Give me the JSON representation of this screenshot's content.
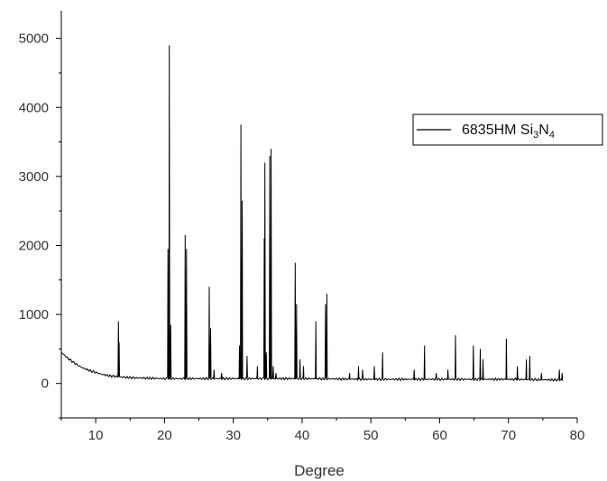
{
  "chart_data": {
    "type": "line",
    "title": "",
    "xlabel": "Degree",
    "ylabel": "",
    "xlim": [
      5,
      80
    ],
    "ylim": [
      -500,
      5400
    ],
    "x_ticks": [
      10,
      20,
      30,
      40,
      50,
      60,
      70,
      80
    ],
    "y_ticks": [
      0,
      1000,
      2000,
      3000,
      4000,
      5000
    ],
    "x_tick_labels": [
      "10",
      "20",
      "30",
      "40",
      "50",
      "60",
      "70",
      "80"
    ],
    "y_tick_labels": [
      "0",
      "1000",
      "2000",
      "3000",
      "4000",
      "5000"
    ],
    "legend_position": "top-right",
    "series": [
      {
        "name": "6835HM Si3N4",
        "legend": {
          "main": "6835HM Si",
          "sub1": "3",
          "mid": "N",
          "sub2": "4"
        },
        "color": "#000000",
        "baseline": {
          "x": [
            5,
            6,
            7,
            8,
            9,
            10,
            11,
            12,
            14,
            16,
            20,
            25,
            30,
            35,
            40,
            50,
            60,
            70,
            78
          ],
          "y": [
            450,
            360,
            290,
            230,
            190,
            160,
            130,
            110,
            90,
            80,
            70,
            70,
            70,
            70,
            70,
            60,
            60,
            60,
            50
          ]
        },
        "peaks": [
          {
            "x": 13.3,
            "y": 900
          },
          {
            "x": 13.4,
            "y": 600
          },
          {
            "x": 20.5,
            "y": 1950
          },
          {
            "x": 20.7,
            "y": 4900
          },
          {
            "x": 20.9,
            "y": 850
          },
          {
            "x": 23.0,
            "y": 2150
          },
          {
            "x": 23.2,
            "y": 1950
          },
          {
            "x": 26.5,
            "y": 1400
          },
          {
            "x": 26.7,
            "y": 800
          },
          {
            "x": 27.2,
            "y": 200
          },
          {
            "x": 28.3,
            "y": 150
          },
          {
            "x": 30.9,
            "y": 550
          },
          {
            "x": 31.1,
            "y": 3750
          },
          {
            "x": 31.3,
            "y": 2650
          },
          {
            "x": 32.0,
            "y": 400
          },
          {
            "x": 33.5,
            "y": 250
          },
          {
            "x": 34.5,
            "y": 2100
          },
          {
            "x": 34.6,
            "y": 3200
          },
          {
            "x": 34.8,
            "y": 450
          },
          {
            "x": 35.3,
            "y": 3300
          },
          {
            "x": 35.5,
            "y": 3400
          },
          {
            "x": 35.8,
            "y": 250
          },
          {
            "x": 36.2,
            "y": 150
          },
          {
            "x": 39.0,
            "y": 1750
          },
          {
            "x": 39.2,
            "y": 1150
          },
          {
            "x": 39.7,
            "y": 350
          },
          {
            "x": 40.2,
            "y": 250
          },
          {
            "x": 42.0,
            "y": 900
          },
          {
            "x": 43.4,
            "y": 1150
          },
          {
            "x": 43.6,
            "y": 1300
          },
          {
            "x": 46.9,
            "y": 150
          },
          {
            "x": 48.2,
            "y": 250
          },
          {
            "x": 48.8,
            "y": 200
          },
          {
            "x": 50.5,
            "y": 250
          },
          {
            "x": 51.7,
            "y": 450
          },
          {
            "x": 56.3,
            "y": 200
          },
          {
            "x": 57.8,
            "y": 550
          },
          {
            "x": 59.5,
            "y": 150
          },
          {
            "x": 61.2,
            "y": 200
          },
          {
            "x": 62.3,
            "y": 700
          },
          {
            "x": 64.9,
            "y": 550
          },
          {
            "x": 65.9,
            "y": 500
          },
          {
            "x": 66.3,
            "y": 350
          },
          {
            "x": 69.7,
            "y": 650
          },
          {
            "x": 71.3,
            "y": 250
          },
          {
            "x": 72.6,
            "y": 350
          },
          {
            "x": 73.1,
            "y": 400
          },
          {
            "x": 74.8,
            "y": 150
          },
          {
            "x": 77.4,
            "y": 200
          },
          {
            "x": 77.8,
            "y": 150
          }
        ]
      }
    ]
  }
}
